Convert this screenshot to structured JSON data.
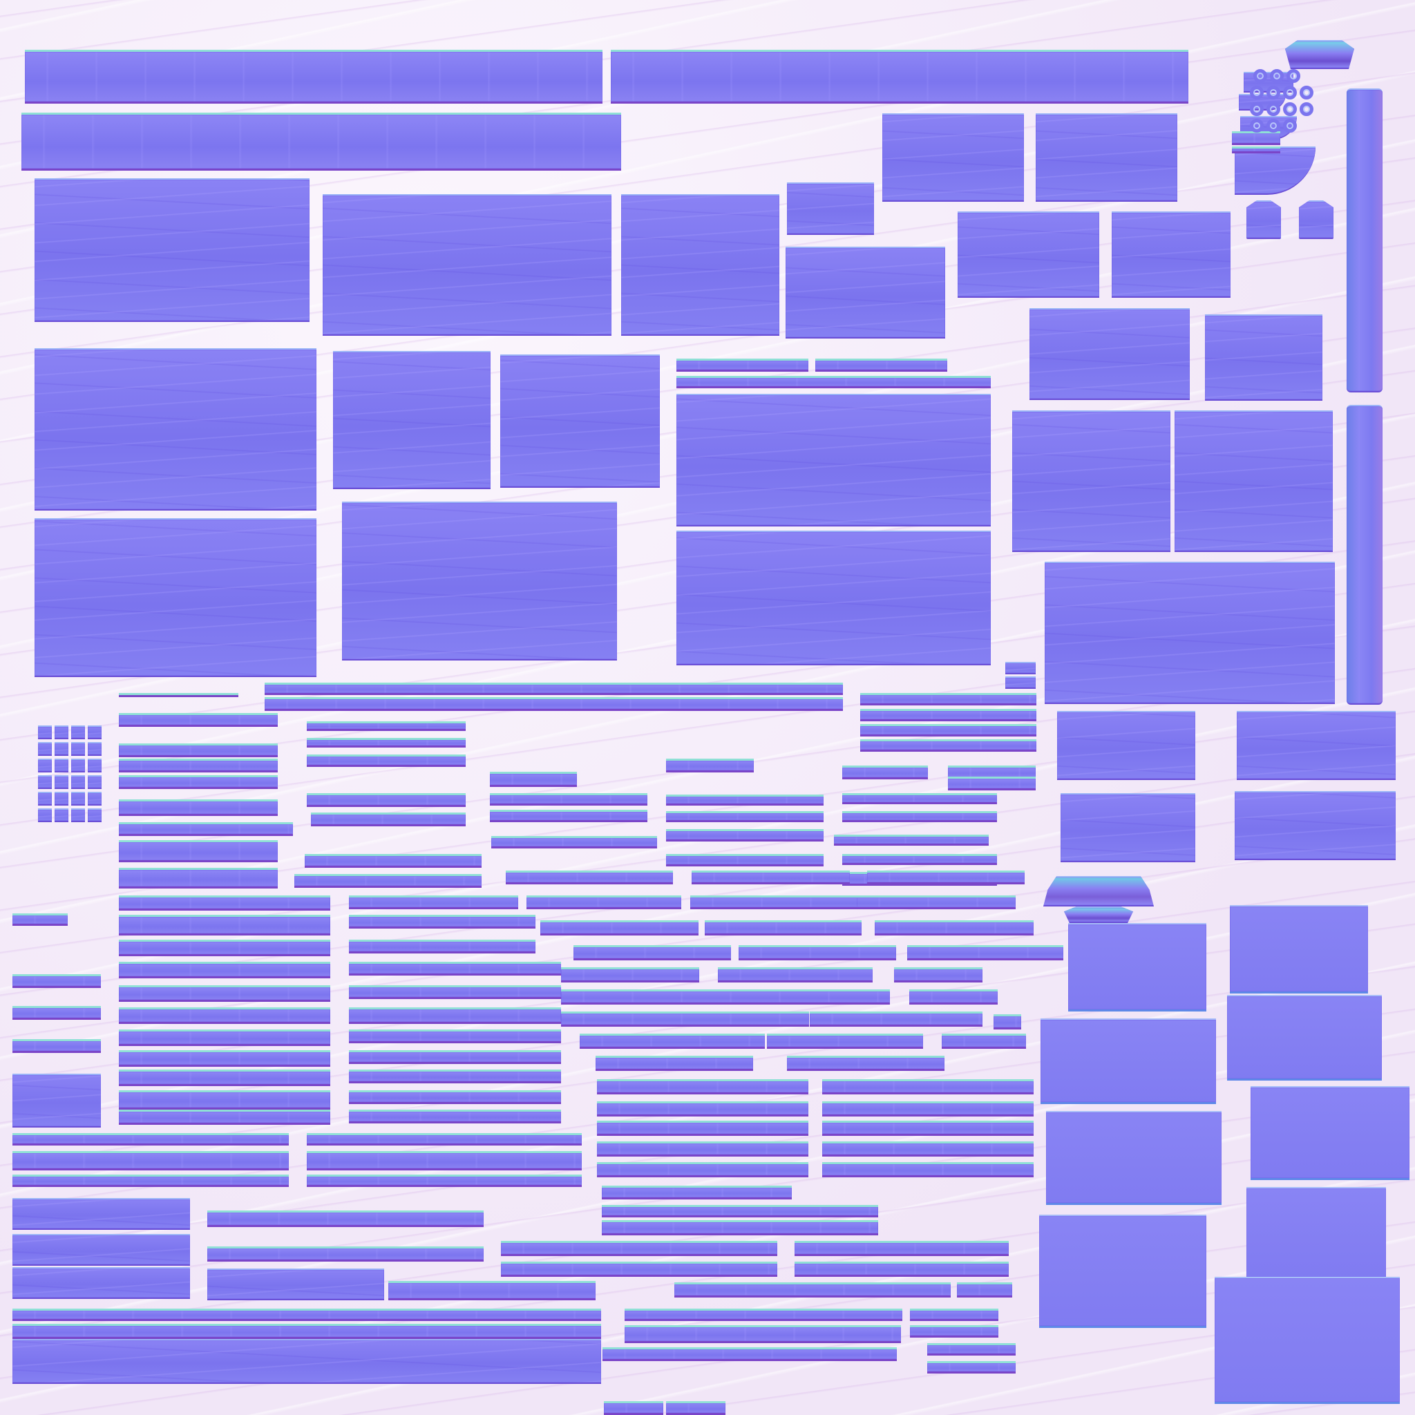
{
  "texture": {
    "kind": "normal-map UV texture atlas",
    "base_color": "#7f78f0",
    "background_color": "#f5eefa",
    "edge_highlight_color": "#8fe0d6",
    "edge_shadow_color": "#7a45c8"
  }
}
